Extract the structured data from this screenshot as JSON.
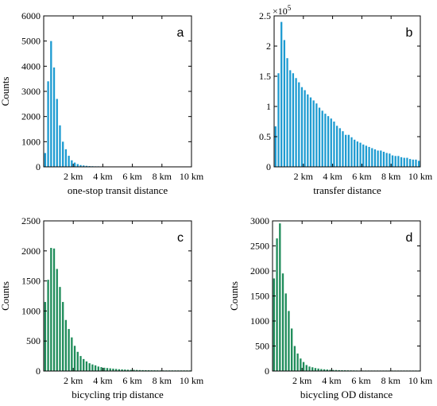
{
  "colors": {
    "blue": "#1d9bd1",
    "green": "#1f8c5a"
  },
  "chart_data": [
    {
      "type": "bar",
      "panel": "a",
      "xlabel": "one-stop transit distance",
      "ylabel": "Counts",
      "xlim": [
        0,
        10
      ],
      "ylim": [
        0,
        6000
      ],
      "yticks": [
        0,
        1000,
        2000,
        3000,
        4000,
        5000,
        6000
      ],
      "ytick_labels": [
        "0",
        "1000",
        "2000",
        "3000",
        "4000",
        "5000",
        "6000"
      ],
      "xticks": [
        2,
        4,
        6,
        8,
        10
      ],
      "xtick_labels": [
        "2 km",
        "4 km",
        "6 km",
        "8 km",
        "10 km"
      ],
      "bar_width_km": 0.2,
      "color": "#1d9bd1",
      "x": [
        0.1,
        0.3,
        0.5,
        0.7,
        0.9,
        1.1,
        1.3,
        1.5,
        1.7,
        1.9,
        2.1,
        2.3,
        2.5,
        2.7,
        2.9,
        3.1,
        3.3,
        3.5,
        3.7,
        3.9,
        4.1,
        4.3,
        4.5,
        4.7,
        4.9,
        5.1,
        5.3,
        5.5,
        5.7,
        5.9,
        6.1,
        6.3,
        6.5,
        6.7,
        6.9,
        7.1,
        7.3,
        7.5,
        7.7,
        7.9,
        8.1,
        8.3,
        8.5,
        8.7,
        8.9,
        9.1,
        9.3,
        9.5,
        9.7,
        9.9
      ],
      "values": [
        550,
        3400,
        5000,
        3950,
        2700,
        1650,
        1000,
        700,
        440,
        260,
        170,
        110,
        70,
        55,
        40,
        30,
        25,
        20,
        20,
        15,
        15,
        15,
        15,
        15,
        15,
        15,
        15,
        15,
        10,
        10,
        10,
        10,
        10,
        10,
        10,
        10,
        10,
        10,
        10,
        10,
        10,
        10,
        10,
        10,
        10,
        10,
        10,
        10,
        10,
        10
      ]
    },
    {
      "type": "bar",
      "panel": "b",
      "xlabel": "transfer distance",
      "ylabel": "",
      "xlim": [
        0,
        10
      ],
      "ylim": [
        0,
        2.5
      ],
      "scale_label": "×10",
      "scale_exponent": "5",
      "yticks": [
        0,
        0.5,
        1,
        1.5,
        2,
        2.5
      ],
      "ytick_labels": [
        "0",
        "0.5",
        "1",
        "1.5",
        "2",
        "2.5"
      ],
      "xticks": [
        2,
        4,
        6,
        8,
        10
      ],
      "xtick_labels": [
        "2 km",
        "4 km",
        "6 km",
        "8 km",
        "10 km"
      ],
      "bar_width_km": 0.2,
      "color": "#1d9bd1",
      "x": [
        0.1,
        0.3,
        0.5,
        0.7,
        0.9,
        1.1,
        1.3,
        1.5,
        1.7,
        1.9,
        2.1,
        2.3,
        2.5,
        2.7,
        2.9,
        3.1,
        3.3,
        3.5,
        3.7,
        3.9,
        4.1,
        4.3,
        4.5,
        4.7,
        4.9,
        5.1,
        5.3,
        5.5,
        5.7,
        5.9,
        6.1,
        6.3,
        6.5,
        6.7,
        6.9,
        7.1,
        7.3,
        7.5,
        7.7,
        7.9,
        8.1,
        8.3,
        8.5,
        8.7,
        8.9,
        9.1,
        9.3,
        9.5,
        9.7,
        9.9
      ],
      "values": [
        0.67,
        1.55,
        2.4,
        2.1,
        1.8,
        1.6,
        1.55,
        1.47,
        1.4,
        1.32,
        1.27,
        1.2,
        1.15,
        1.1,
        1.05,
        0.98,
        0.93,
        0.88,
        0.84,
        0.8,
        0.75,
        0.68,
        0.64,
        0.59,
        0.53,
        0.53,
        0.49,
        0.45,
        0.42,
        0.4,
        0.37,
        0.35,
        0.33,
        0.31,
        0.29,
        0.27,
        0.27,
        0.25,
        0.23,
        0.22,
        0.19,
        0.18,
        0.18,
        0.16,
        0.15,
        0.15,
        0.13,
        0.12,
        0.12,
        0.1
      ]
    },
    {
      "type": "bar",
      "panel": "c",
      "xlabel": "bicycling trip distance",
      "ylabel": "Counts",
      "xlim": [
        0,
        10
      ],
      "ylim": [
        0,
        2500
      ],
      "yticks": [
        0,
        500,
        1000,
        1500,
        2000,
        2500
      ],
      "ytick_labels": [
        "0",
        "500",
        "1000",
        "1500",
        "2000",
        "2500"
      ],
      "xticks": [
        2,
        4,
        6,
        8,
        10
      ],
      "xtick_labels": [
        "2 km",
        "4 km",
        "6 km",
        "8 km",
        "10 km"
      ],
      "bar_width_km": 0.2,
      "color": "#1f8c5a",
      "x": [
        0.1,
        0.3,
        0.5,
        0.7,
        0.9,
        1.1,
        1.3,
        1.5,
        1.7,
        1.9,
        2.1,
        2.3,
        2.5,
        2.7,
        2.9,
        3.1,
        3.3,
        3.5,
        3.7,
        3.9,
        4.1,
        4.3,
        4.5,
        4.7,
        4.9,
        5.1,
        5.3,
        5.5,
        5.7,
        5.9,
        6.1,
        6.3,
        6.5,
        6.7,
        6.9,
        7.1,
        7.3,
        7.5,
        7.7,
        7.9,
        8.1,
        8.3,
        8.5,
        8.7,
        8.9,
        9.1,
        9.3,
        9.5,
        9.7,
        9.9
      ],
      "values": [
        1150,
        1520,
        2050,
        2040,
        1700,
        1400,
        1150,
        850,
        700,
        560,
        420,
        320,
        250,
        200,
        160,
        130,
        110,
        95,
        75,
        65,
        55,
        50,
        45,
        40,
        35,
        30,
        28,
        25,
        22,
        20,
        20,
        18,
        16,
        15,
        14,
        13,
        12,
        12,
        11,
        10,
        10,
        10,
        10,
        10,
        10,
        10,
        10,
        10,
        10,
        10
      ]
    },
    {
      "type": "bar",
      "panel": "d",
      "xlabel": "bicycling OD distance",
      "ylabel": "Counts",
      "xlim": [
        0,
        10
      ],
      "ylim": [
        0,
        3000
      ],
      "yticks": [
        0,
        500,
        1000,
        1500,
        2000,
        2500,
        3000
      ],
      "ytick_labels": [
        "0",
        "500",
        "1000",
        "1500",
        "2000",
        "2500",
        "3000"
      ],
      "xticks": [
        2,
        4,
        6,
        8,
        10
      ],
      "xtick_labels": [
        "2 km",
        "4 km",
        "6 km",
        "8 km",
        "10 km"
      ],
      "bar_width_km": 0.2,
      "color": "#1f8c5a",
      "x": [
        0.1,
        0.3,
        0.5,
        0.7,
        0.9,
        1.1,
        1.3,
        1.5,
        1.7,
        1.9,
        2.1,
        2.3,
        2.5,
        2.7,
        2.9,
        3.1,
        3.3,
        3.5,
        3.7,
        3.9,
        4.1,
        4.3,
        4.5,
        4.7,
        4.9,
        5.1,
        5.3,
        5.5,
        5.7,
        5.9,
        6.1,
        6.3,
        6.5,
        6.7,
        6.9,
        7.1,
        7.3,
        7.5,
        7.7,
        7.9,
        8.1,
        8.3,
        8.5,
        8.7,
        8.9,
        9.1,
        9.3,
        9.5,
        9.7,
        9.9
      ],
      "values": [
        1850,
        2650,
        2950,
        1950,
        1550,
        1200,
        850,
        500,
        350,
        250,
        180,
        120,
        90,
        75,
        60,
        50,
        40,
        35,
        30,
        25,
        22,
        20,
        18,
        16,
        15,
        14,
        13,
        12,
        11,
        10,
        10,
        10,
        10,
        10,
        10,
        10,
        10,
        10,
        10,
        10,
        10,
        10,
        10,
        10,
        10,
        10,
        10,
        10,
        10,
        10
      ]
    }
  ]
}
